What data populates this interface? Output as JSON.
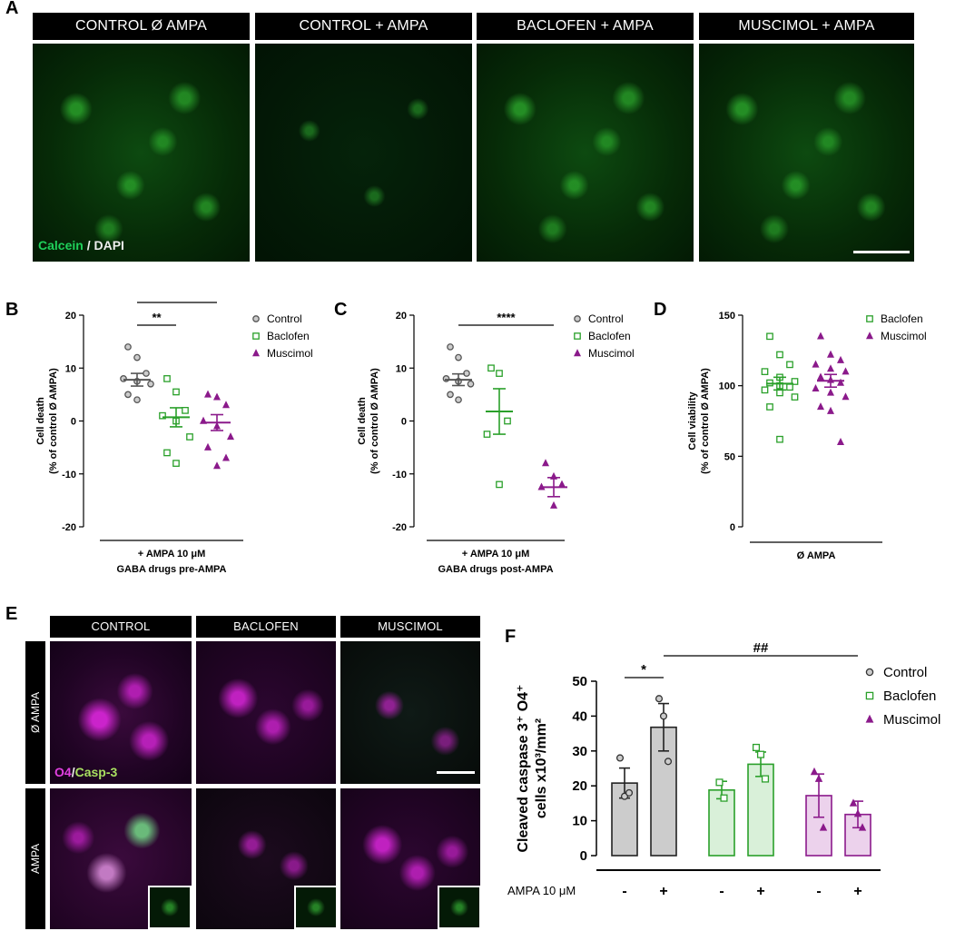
{
  "panel_letters": {
    "a": "A",
    "b": "B",
    "c": "C",
    "d": "D",
    "e": "E",
    "f": "F"
  },
  "panel_a": {
    "headers": [
      "CONTROL Ø AMPA",
      "CONTROL + AMPA",
      "BACLOFEN + AMPA",
      "MUSCIMOL + AMPA"
    ],
    "stain_label_1": "Calcein",
    "stain_separator": " / ",
    "stain_label_2": "DAPI"
  },
  "panel_e": {
    "headers": [
      "CONTROL",
      "BACLOFEN",
      "MUSCIMOL"
    ],
    "row_labels": [
      "Ø AMPA",
      "AMPA"
    ],
    "stain_label_1": "O4",
    "stain_separator": "/",
    "stain_label_2": "Casp-3"
  },
  "colors": {
    "control": "#555555",
    "baclofen": "#2aa02a",
    "muscimol": "#8b1a8b",
    "calcein": "#1fd05a",
    "o4": "#e040e0",
    "casp3": "#a8e060"
  },
  "chart_data": [
    {
      "panel": "B",
      "type": "scatter",
      "ylabel_line1": "Cell death",
      "ylabel_line2": "(% of control Ø AMPA)",
      "ylim": [
        -20,
        20
      ],
      "yticks": [
        -20,
        -10,
        0,
        10,
        20
      ],
      "xlabel_line1": "+ AMPA 10 μM",
      "xlabel_line2": "GABA drugs pre-AMPA",
      "legend": [
        "Control",
        "Baclofen",
        "Muscimol"
      ],
      "legend_position": "top-right",
      "series": [
        {
          "name": "Control",
          "marker": "circle",
          "mean": 7.8,
          "sem": 1.2,
          "values": [
            14,
            12,
            9,
            8,
            7.5,
            7,
            5,
            4
          ]
        },
        {
          "name": "Baclofen",
          "marker": "square",
          "mean": 0.7,
          "sem": 1.8,
          "values": [
            8,
            5.5,
            2,
            1,
            0,
            -3,
            -6,
            -8
          ]
        },
        {
          "name": "Muscimol",
          "marker": "triangle",
          "mean": -0.3,
          "sem": 1.5,
          "values": [
            5,
            4.5,
            3,
            0,
            -1,
            -3,
            -5,
            -8.5,
            -7
          ]
        }
      ],
      "significance": [
        {
          "label": "***",
          "from": "Control",
          "to": "Muscimol"
        },
        {
          "label": "**",
          "from": "Control",
          "to": "Baclofen"
        }
      ]
    },
    {
      "panel": "C",
      "type": "scatter",
      "ylabel_line1": "Cell death",
      "ylabel_line2": "(% of control Ø AMPA)",
      "ylim": [
        -20,
        20
      ],
      "yticks": [
        -20,
        -10,
        0,
        10,
        20
      ],
      "xlabel_line1": "+ AMPA 10 μM",
      "xlabel_line2": "GABA drugs post-AMPA",
      "legend": [
        "Control",
        "Baclofen",
        "Muscimol"
      ],
      "legend_position": "top-right",
      "series": [
        {
          "name": "Control",
          "marker": "circle",
          "mean": 7.8,
          "sem": 1.1,
          "values": [
            14,
            12,
            9,
            8,
            7.5,
            7,
            5,
            4
          ]
        },
        {
          "name": "Baclofen",
          "marker": "square",
          "mean": 1.8,
          "sem": 4.3,
          "values": [
            10,
            9,
            0,
            -2.5,
            -12
          ]
        },
        {
          "name": "Muscimol",
          "marker": "triangle",
          "mean": -12.5,
          "sem": 1.8,
          "values": [
            -8,
            -10.5,
            -12,
            -12.5,
            -16
          ]
        }
      ],
      "significance": [
        {
          "label": "****",
          "from": "Control",
          "to": "Muscimol"
        }
      ]
    },
    {
      "panel": "D",
      "type": "scatter",
      "ylabel_line1": "Cell viability",
      "ylabel_line2": "(% of control Ø AMPA)",
      "ylim": [
        0,
        150
      ],
      "yticks": [
        0,
        50,
        100,
        150
      ],
      "xlabel_line1": "Ø AMPA",
      "legend": [
        "Baclofen",
        "Muscimol"
      ],
      "legend_position": "top-right",
      "series": [
        {
          "name": "Baclofen",
          "marker": "square",
          "mean": 101.5,
          "sem": 4.5,
          "values": [
            135,
            122,
            115,
            110,
            106,
            103,
            102,
            100,
            99,
            97,
            95,
            92,
            85,
            62
          ]
        },
        {
          "name": "Muscimol",
          "marker": "triangle",
          "mean": 103.5,
          "sem": 4.5,
          "values": [
            135,
            122,
            118,
            115,
            112,
            110,
            106,
            104,
            102,
            98,
            95,
            92,
            85,
            82,
            60
          ]
        }
      ]
    },
    {
      "panel": "F",
      "type": "bar",
      "ylabel_line1": "Cleaved caspase 3⁺ O4⁺",
      "ylabel_line2": "cells x10³/mm²",
      "ylim": [
        0,
        50
      ],
      "yticks": [
        0,
        10,
        20,
        30,
        40,
        50
      ],
      "xlabel": "AMPA 10 μM",
      "categories": [
        "-",
        "+",
        "-",
        "+",
        "-",
        "+"
      ],
      "legend": [
        "Control",
        "Baclofen",
        "Muscimol"
      ],
      "legend_position": "top-right",
      "series": [
        {
          "name": "Control",
          "marker": "circle",
          "bars": [
            {
              "ampa": "-",
              "mean": 20.8,
              "sem": 4.3,
              "points": [
                28,
                17,
                18
              ]
            },
            {
              "ampa": "+",
              "mean": 36.8,
              "sem": 6.8,
              "points": [
                45,
                40,
                27
              ]
            }
          ]
        },
        {
          "name": "Baclofen",
          "marker": "square",
          "bars": [
            {
              "ampa": "-",
              "mean": 18.8,
              "sem": 2.5,
              "points": [
                21,
                16.5
              ]
            },
            {
              "ampa": "+",
              "mean": 26.2,
              "sem": 3.5,
              "points": [
                31,
                29,
                22
              ]
            }
          ]
        },
        {
          "name": "Muscimol",
          "marker": "triangle",
          "bars": [
            {
              "ampa": "-",
              "mean": 17.2,
              "sem": 6.2,
              "points": [
                24,
                22,
                8
              ]
            },
            {
              "ampa": "+",
              "mean": 11.8,
              "sem": 3.8,
              "points": [
                15,
                12,
                8
              ]
            }
          ]
        }
      ],
      "significance": [
        {
          "label": "*",
          "between": "Control - vs Control +"
        },
        {
          "label": "##",
          "between": "Control + vs Muscimol +"
        }
      ]
    }
  ]
}
